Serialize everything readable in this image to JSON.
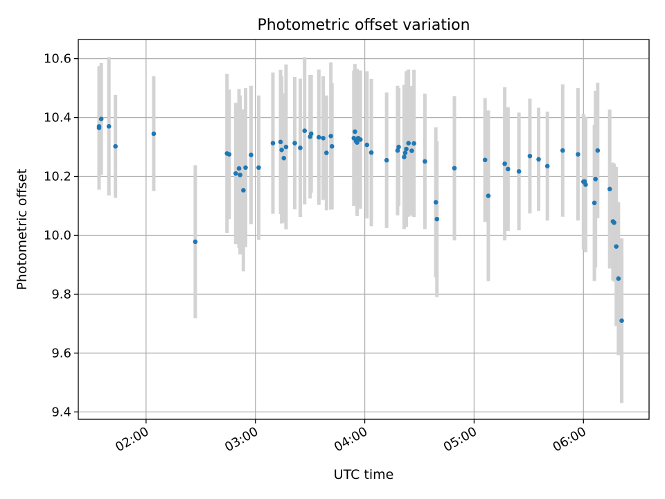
{
  "chart_data": {
    "type": "scatter",
    "title": "Photometric offset variation",
    "xlabel": "UTC time",
    "ylabel": "Photometric offset",
    "x_unit": "UTC time of day (hours)",
    "xlim": [
      1.38,
      6.6
    ],
    "ylim": [
      9.375,
      10.665
    ],
    "grid": true,
    "xticks": [
      {
        "value": 2.0,
        "label": "02:00"
      },
      {
        "value": 3.0,
        "label": "03:00"
      },
      {
        "value": 4.0,
        "label": "04:00"
      },
      {
        "value": 5.0,
        "label": "05:00"
      },
      {
        "value": 6.0,
        "label": "06:00"
      }
    ],
    "yticks": [
      {
        "value": 9.4,
        "label": "9.4"
      },
      {
        "value": 9.6,
        "label": "9.6"
      },
      {
        "value": 9.8,
        "label": "9.8"
      },
      {
        "value": 10.0,
        "label": "10.0"
      },
      {
        "value": 10.2,
        "label": "10.2"
      },
      {
        "value": 10.4,
        "label": "10.4"
      },
      {
        "value": 10.6,
        "label": "10.6"
      }
    ],
    "colors": {
      "point": "#1f77b4",
      "errorbar": "#d3d3d3",
      "grid": "#b0b0b0",
      "axis": "#000000"
    },
    "series": [
      {
        "x": [
          1.57,
          1.57,
          1.59,
          1.66,
          1.72,
          2.07,
          2.45,
          2.74,
          2.76,
          2.82,
          2.85,
          2.86,
          2.89,
          2.91,
          2.96,
          3.03,
          3.16,
          3.23,
          3.24,
          3.26,
          3.28,
          3.36,
          3.41,
          3.45,
          3.5,
          3.51,
          3.58,
          3.62,
          3.65,
          3.69,
          3.7,
          3.9,
          3.91,
          3.92,
          3.93,
          3.94,
          3.96,
          4.02,
          4.06,
          4.2,
          4.3,
          4.31,
          4.36,
          4.37,
          4.38,
          4.4,
          4.43,
          4.45,
          4.55,
          4.65,
          4.66,
          4.82,
          5.1,
          5.13,
          5.28,
          5.31,
          5.41,
          5.51,
          5.59,
          5.67,
          5.81,
          5.95,
          6.0,
          6.01,
          6.02,
          6.1,
          6.11,
          6.13,
          6.24,
          6.27,
          6.28,
          6.3,
          6.32,
          6.35
        ],
        "y": [
          10.365,
          10.37,
          10.395,
          10.37,
          10.302,
          10.345,
          9.978,
          10.278,
          10.275,
          10.21,
          10.227,
          10.205,
          10.153,
          10.23,
          10.273,
          10.23,
          10.313,
          10.317,
          10.29,
          10.262,
          10.3,
          10.313,
          10.297,
          10.355,
          10.335,
          10.345,
          10.333,
          10.33,
          10.28,
          10.337,
          10.302,
          10.33,
          10.352,
          10.32,
          10.315,
          10.33,
          10.325,
          10.307,
          10.281,
          10.255,
          10.288,
          10.3,
          10.266,
          10.28,
          10.293,
          10.313,
          10.287,
          10.312,
          10.251,
          10.112,
          10.055,
          10.228,
          10.256,
          10.134,
          10.243,
          10.225,
          10.217,
          10.269,
          10.258,
          10.235,
          10.288,
          10.275,
          10.182,
          10.183,
          10.172,
          10.11,
          10.191,
          10.288,
          10.157,
          10.047,
          10.043,
          9.962,
          9.853,
          9.71
        ],
        "err": [
          0.21,
          0.18,
          0.19,
          0.235,
          0.175,
          0.195,
          0.26,
          0.27,
          0.22,
          0.24,
          0.27,
          0.27,
          0.275,
          0.27,
          0.235,
          0.245,
          0.24,
          0.245,
          0.25,
          0.22,
          0.28,
          0.225,
          0.235,
          0.25,
          0.21,
          0.2,
          0.23,
          0.21,
          0.195,
          0.25,
          0.215,
          0.23,
          0.23,
          0.205,
          0.25,
          0.22,
          0.235,
          0.25,
          0.25,
          0.23,
          0.22,
          0.2,
          0.245,
          0.22,
          0.265,
          0.25,
          0.22,
          0.25,
          0.23,
          0.255,
          0.265,
          0.245,
          0.21,
          0.29,
          0.26,
          0.21,
          0.2,
          0.195,
          0.175,
          0.185,
          0.225,
          0.225,
          0.23,
          0.22,
          0.23,
          0.265,
          0.3,
          0.23,
          0.27,
          0.2,
          0.2,
          0.27,
          0.26,
          0.28
        ]
      }
    ]
  }
}
